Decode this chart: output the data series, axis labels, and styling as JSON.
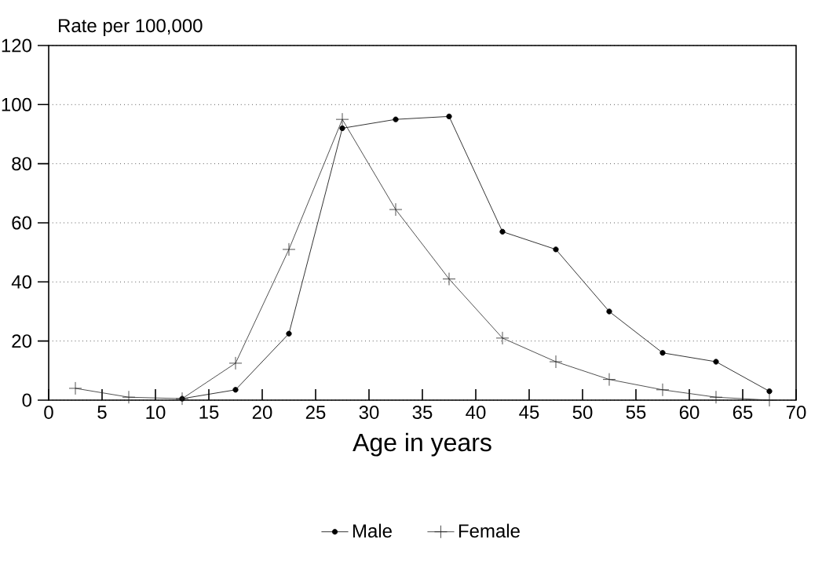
{
  "chart_data": {
    "type": "line",
    "ylabel": "Rate per 100,000",
    "xlabel": "Age in years",
    "x": [
      2.5,
      7.5,
      12.5,
      17.5,
      22.5,
      27.5,
      32.5,
      37.5,
      42.5,
      47.5,
      52.5,
      57.5,
      62.5,
      67.5
    ],
    "series": [
      {
        "name": "Male",
        "color": "#000000",
        "marker": "circle",
        "values": [
          null,
          null,
          0.5,
          3.5,
          22.5,
          92,
          95,
          96,
          57,
          51,
          30,
          16,
          13,
          3
        ]
      },
      {
        "name": "Female",
        "color": "#262626",
        "marker": "cross",
        "values": [
          4,
          1,
          0.5,
          12.5,
          51,
          95,
          64.5,
          41,
          21,
          13,
          7,
          3.5,
          1,
          0
        ]
      }
    ],
    "xlim": [
      0,
      70
    ],
    "xticks": [
      0,
      5,
      10,
      15,
      20,
      25,
      30,
      35,
      40,
      45,
      50,
      55,
      60,
      65,
      70
    ],
    "ylim": [
      0,
      120
    ],
    "yticks": [
      0,
      20,
      40,
      60,
      80,
      100,
      120
    ],
    "grid": "y",
    "legend": "bottom",
    "line_style": "solid"
  }
}
